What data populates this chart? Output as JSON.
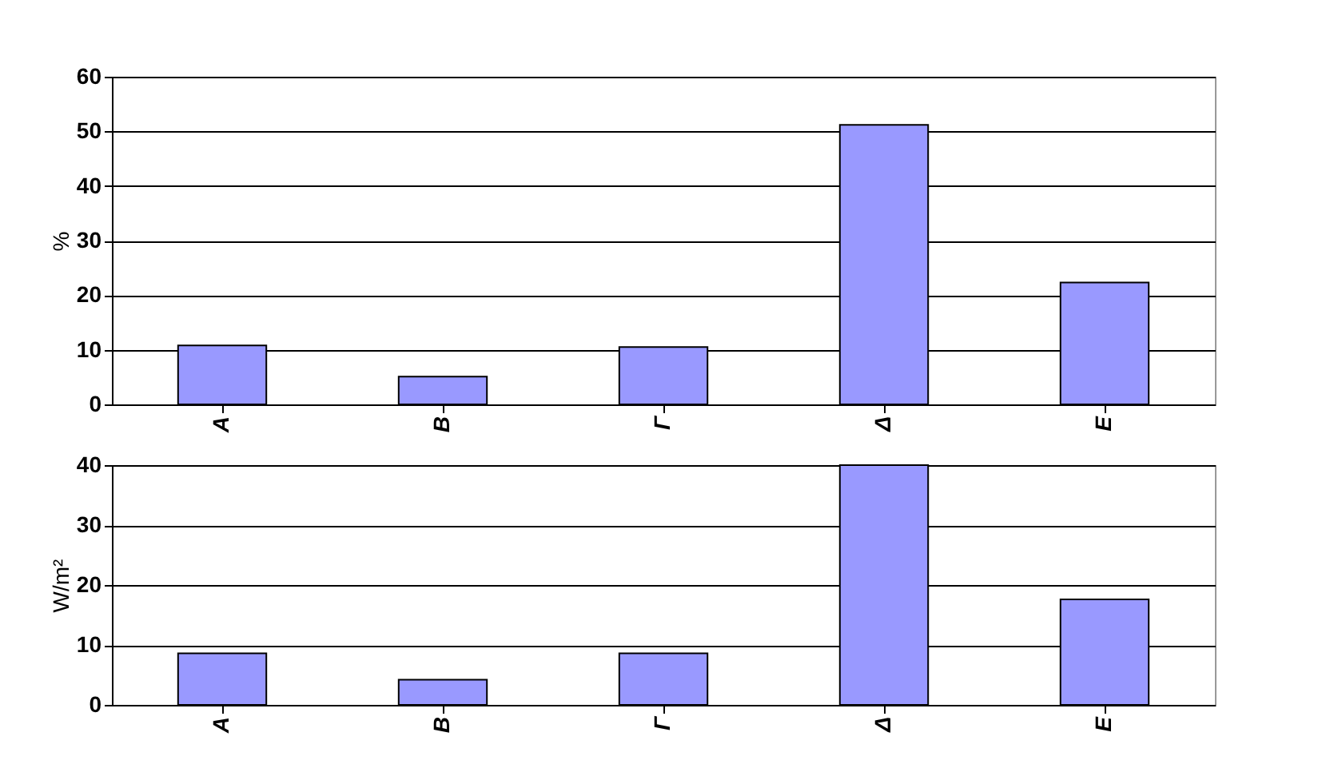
{
  "chart_data": [
    {
      "type": "bar",
      "ylabel": "%",
      "categories": [
        "Α",
        "Β",
        "Γ",
        "Δ",
        "Ε"
      ],
      "values": [
        10.8,
        5.1,
        10.5,
        51.2,
        22.3
      ],
      "color": "#9999ff",
      "ylim": [
        0,
        60
      ],
      "yticks": [
        0,
        10,
        20,
        30,
        40,
        50,
        60
      ],
      "grid": "y"
    },
    {
      "type": "bar",
      "ylabel": "W/m²",
      "categories": [
        "Α",
        "Β",
        "Γ",
        "Δ",
        "Ε"
      ],
      "values": [
        8.6,
        4.2,
        8.6,
        40,
        17.6
      ],
      "color": "#9999ff",
      "ylim": [
        0,
        40
      ],
      "yticks": [
        0,
        10,
        20,
        30,
        40
      ],
      "grid": "y"
    }
  ]
}
